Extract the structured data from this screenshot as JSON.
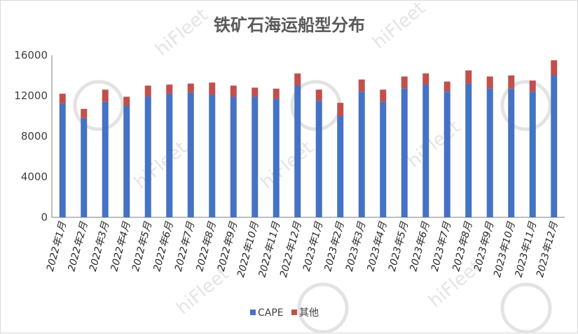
{
  "chart_data": {
    "type": "bar",
    "stacked": true,
    "title": "铁矿石海运船型分布",
    "xlabel": "",
    "ylabel": "",
    "ylim": [
      0,
      16000
    ],
    "yticks": [
      "0",
      "4000",
      "8000",
      "12000",
      "16000"
    ],
    "grid": false,
    "legend_position": "bottom",
    "categories": [
      "2022年1月",
      "2022年2月",
      "2022年3月",
      "2022年4月",
      "2022年5月",
      "2022年6月",
      "2022年7月",
      "2022年8月",
      "2022年9月",
      "2022年10月",
      "2022年11月",
      "2022年12月",
      "2023年1月",
      "2023年2月",
      "2023年3月",
      "2023年4月",
      "2023年5月",
      "2023年6月",
      "2023年7月",
      "2023年8月",
      "2023年9月",
      "2023年10月",
      "2023年11月",
      "2023年12月"
    ],
    "series": [
      {
        "name": "CAPE",
        "color": "#4472c4",
        "values": [
          11200,
          9800,
          11400,
          11000,
          11900,
          12200,
          12300,
          12100,
          11900,
          11900,
          11700,
          13000,
          11500,
          10000,
          12400,
          11400,
          12700,
          13100,
          12400,
          13200,
          12700,
          12700,
          12400,
          14000
        ]
      },
      {
        "name": "其他",
        "color": "#c0504d",
        "values": [
          1000,
          900,
          1200,
          900,
          1100,
          900,
          900,
          1200,
          1100,
          900,
          1000,
          1200,
          1100,
          1300,
          1200,
          1200,
          1200,
          1100,
          1000,
          1300,
          1200,
          1300,
          1100,
          1500
        ]
      }
    ]
  },
  "watermark": {
    "text": "hiFleet"
  }
}
